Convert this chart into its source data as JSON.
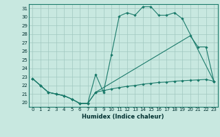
{
  "xlabel": "Humidex (Indice chaleur)",
  "bg_color": "#c8e8e0",
  "grid_color": "#a0c8c0",
  "line_color": "#1a7a6a",
  "xlim": [
    -0.5,
    23.5
  ],
  "ylim": [
    19.5,
    31.5
  ],
  "yticks": [
    20,
    21,
    22,
    23,
    24,
    25,
    26,
    27,
    28,
    29,
    30,
    31
  ],
  "xticks": [
    0,
    1,
    2,
    3,
    4,
    5,
    6,
    7,
    8,
    9,
    10,
    11,
    12,
    13,
    14,
    15,
    16,
    17,
    18,
    19,
    20,
    21,
    22,
    23
  ],
  "line1_x": [
    0,
    1,
    2,
    3,
    4,
    5,
    6,
    7,
    8,
    9,
    10,
    11,
    12,
    13,
    14,
    15,
    16,
    17,
    18,
    19,
    23
  ],
  "line1_y": [
    22.8,
    22.0,
    21.2,
    21.0,
    20.8,
    20.4,
    19.9,
    19.9,
    23.3,
    21.2,
    25.6,
    30.1,
    30.5,
    30.2,
    31.2,
    31.2,
    30.2,
    30.2,
    30.5,
    29.8,
    22.5
  ],
  "line2_x": [
    0,
    1,
    2,
    3,
    4,
    5,
    6,
    7,
    8,
    20,
    21,
    22,
    23
  ],
  "line2_y": [
    22.8,
    22.0,
    21.2,
    21.0,
    20.8,
    20.4,
    19.9,
    19.9,
    21.2,
    27.8,
    26.5,
    26.5,
    22.5
  ],
  "line3_x": [
    0,
    1,
    2,
    3,
    4,
    5,
    6,
    7,
    8,
    9,
    10,
    11,
    12,
    13,
    14,
    15,
    16,
    17,
    18,
    19,
    20,
    21,
    22,
    23
  ],
  "line3_y": [
    22.8,
    22.0,
    21.2,
    21.0,
    20.8,
    20.4,
    19.9,
    19.9,
    21.2,
    21.4,
    21.6,
    21.75,
    21.9,
    22.0,
    22.15,
    22.25,
    22.35,
    22.4,
    22.5,
    22.55,
    22.6,
    22.65,
    22.7,
    22.5
  ],
  "xlabel_fontsize": 6,
  "tick_fontsize": 5,
  "linewidth": 0.8,
  "markersize": 2.2
}
